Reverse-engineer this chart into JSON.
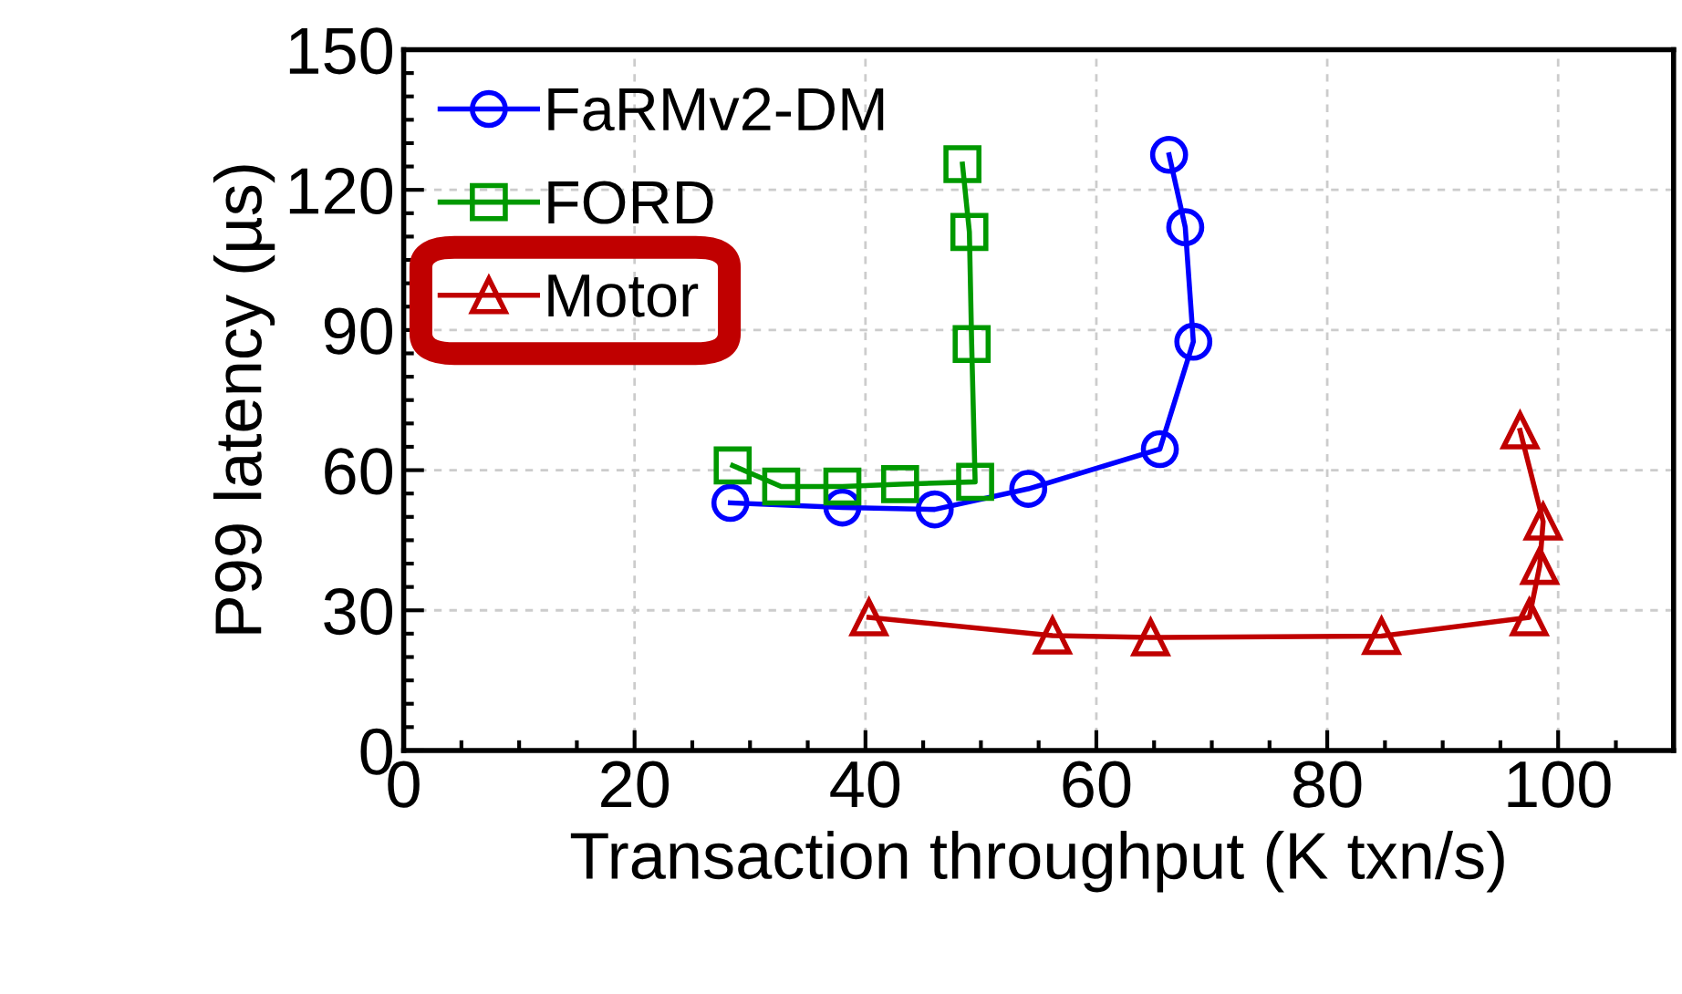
{
  "chart_data": {
    "type": "line",
    "xlabel": "Transaction throughput (K txn/s)",
    "ylabel": "P99 latency (µs)",
    "xlim": [
      0,
      110
    ],
    "xticks": [
      0,
      20,
      40,
      60,
      80,
      100
    ],
    "ylim": [
      0,
      150
    ],
    "yticks": [
      0,
      30,
      60,
      90,
      120,
      150
    ],
    "grid": true,
    "legend": "top left",
    "series": [
      {
        "name": "FaRMv2-DM",
        "color": "#0000ff",
        "marker": "circle",
        "x": [
          28.3,
          38,
          46,
          54.1,
          65.5,
          68.4,
          67.7,
          66.3
        ],
        "values": [
          53,
          52,
          51.6,
          56,
          64.5,
          87.5,
          112,
          127.5
        ]
      },
      {
        "name": "FORD",
        "color": "#009900",
        "marker": "square",
        "x": [
          28.5,
          32.7,
          38,
          43,
          49.5,
          49.2,
          49,
          48.4
        ],
        "values": [
          61,
          56.5,
          56.5,
          57,
          57.5,
          87,
          111,
          125.5
        ]
      },
      {
        "name": "Motor",
        "color": "#c00000",
        "marker": "triangle",
        "x": [
          40.3,
          56.2,
          64.7,
          84.7,
          97.5,
          98.4,
          98.7,
          96.7
        ],
        "values": [
          28.5,
          24.6,
          24.2,
          24.5,
          28.5,
          39.5,
          49,
          68.5
        ]
      }
    ]
  }
}
